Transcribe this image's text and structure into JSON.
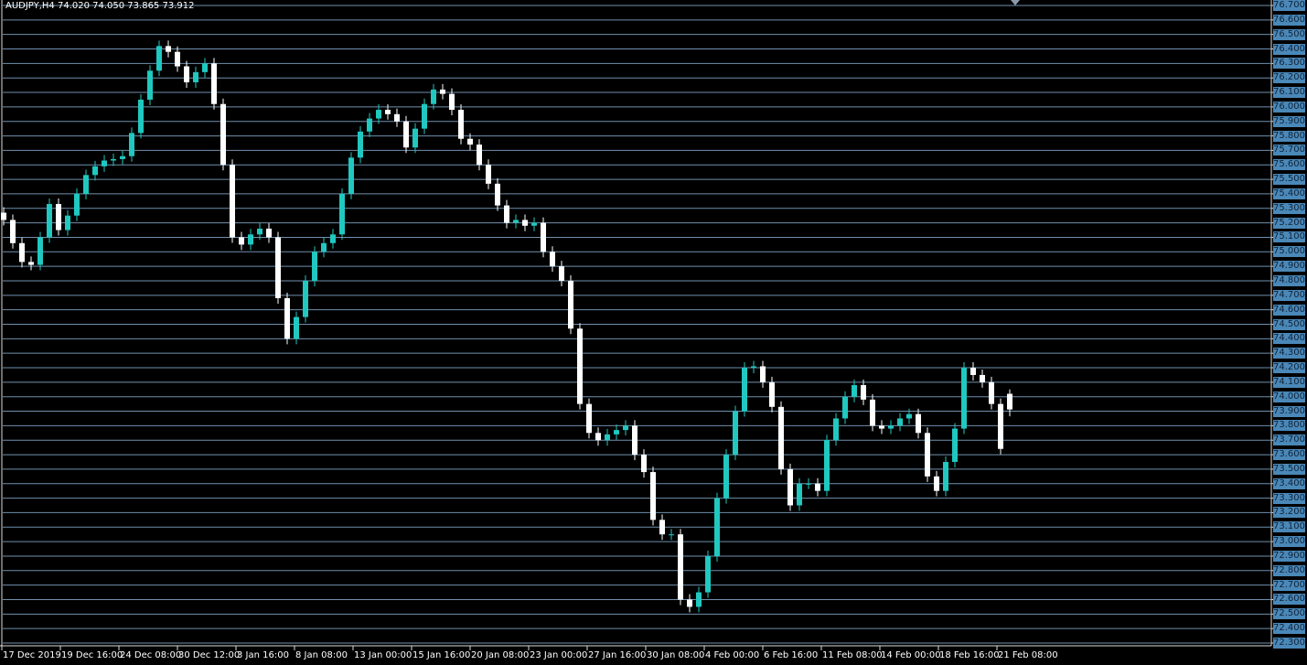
{
  "title": "AUDJPY,H4  74.020 74.050 73.865 73.912",
  "colors": {
    "background": "#000000",
    "grid": "#6f90ad",
    "bull": "#20c8c0",
    "bear": "#ffffff",
    "axis_label_bg": "#4a88b8"
  },
  "chart_data": {
    "type": "candlestick",
    "symbol": "AUDJPY",
    "timeframe": "H4",
    "ylim": [
      72.3,
      76.7
    ],
    "grid": true,
    "y_ticks": [
      "76.700",
      "76.600",
      "76.500",
      "76.400",
      "76.300",
      "76.200",
      "76.100",
      "76.000",
      "75.900",
      "75.800",
      "75.700",
      "75.600",
      "75.500",
      "75.400",
      "75.300",
      "75.200",
      "75.100",
      "75.000",
      "74.900",
      "74.800",
      "74.700",
      "74.600",
      "74.500",
      "74.400",
      "74.300",
      "74.200",
      "74.100",
      "74.000",
      "73.900",
      "73.800",
      "73.700",
      "73.600",
      "73.500",
      "73.400",
      "73.300",
      "73.200",
      "73.100",
      "73.000",
      "72.900",
      "72.800",
      "72.700",
      "72.600",
      "72.500",
      "72.400",
      "72.300"
    ],
    "x_ticks": [
      "17 Dec 2019",
      "19 Dec 16:00",
      "24 Dec 08:00",
      "30 Dec 12:00",
      "3 Jan 16:00",
      "8 Jan 08:00",
      "13 Jan 00:00",
      "15 Jan 16:00",
      "20 Jan 08:00",
      "23 Jan 00:00",
      "27 Jan 16:00",
      "30 Jan 08:00",
      "4 Feb 00:00",
      "6 Feb 16:00",
      "11 Feb 08:00",
      "14 Feb 00:00",
      "18 Feb 16:00",
      "21 Feb 08:00"
    ],
    "closes": [
      75.22,
      75.06,
      74.93,
      74.91,
      75.1,
      75.33,
      75.15,
      75.25,
      75.4,
      75.53,
      75.59,
      75.63,
      75.64,
      75.66,
      75.82,
      76.05,
      76.25,
      76.42,
      76.38,
      76.28,
      76.17,
      76.24,
      76.3,
      76.02,
      75.6,
      75.1,
      75.05,
      75.12,
      75.16,
      75.1,
      74.68,
      74.4,
      74.55,
      74.8,
      75.0,
      75.06,
      75.12,
      75.4,
      75.65,
      75.83,
      75.92,
      75.98,
      75.95,
      75.9,
      75.72,
      75.85,
      76.02,
      76.12,
      76.09,
      75.98,
      75.78,
      75.74,
      75.6,
      75.47,
      75.32,
      75.2,
      75.22,
      75.18,
      75.2,
      75.0,
      74.9,
      74.8,
      74.47,
      73.95,
      73.75,
      73.7,
      73.74,
      73.77,
      73.8,
      73.6,
      73.48,
      73.15,
      73.05,
      73.05,
      72.6,
      72.55,
      72.65,
      72.9,
      73.3,
      73.6,
      73.9,
      74.2,
      74.21,
      74.1,
      73.93,
      73.5,
      73.25,
      73.4,
      73.4,
      73.35,
      73.7,
      73.85,
      74.0,
      74.08,
      73.98,
      73.8,
      73.78,
      73.8,
      73.85,
      73.88,
      73.75,
      73.45,
      73.35,
      73.55,
      73.78,
      74.2,
      74.15,
      74.1,
      73.95,
      73.64,
      73.912
    ],
    "last": {
      "open": 74.02,
      "high": 74.05,
      "low": 73.865,
      "close": 73.912
    }
  }
}
